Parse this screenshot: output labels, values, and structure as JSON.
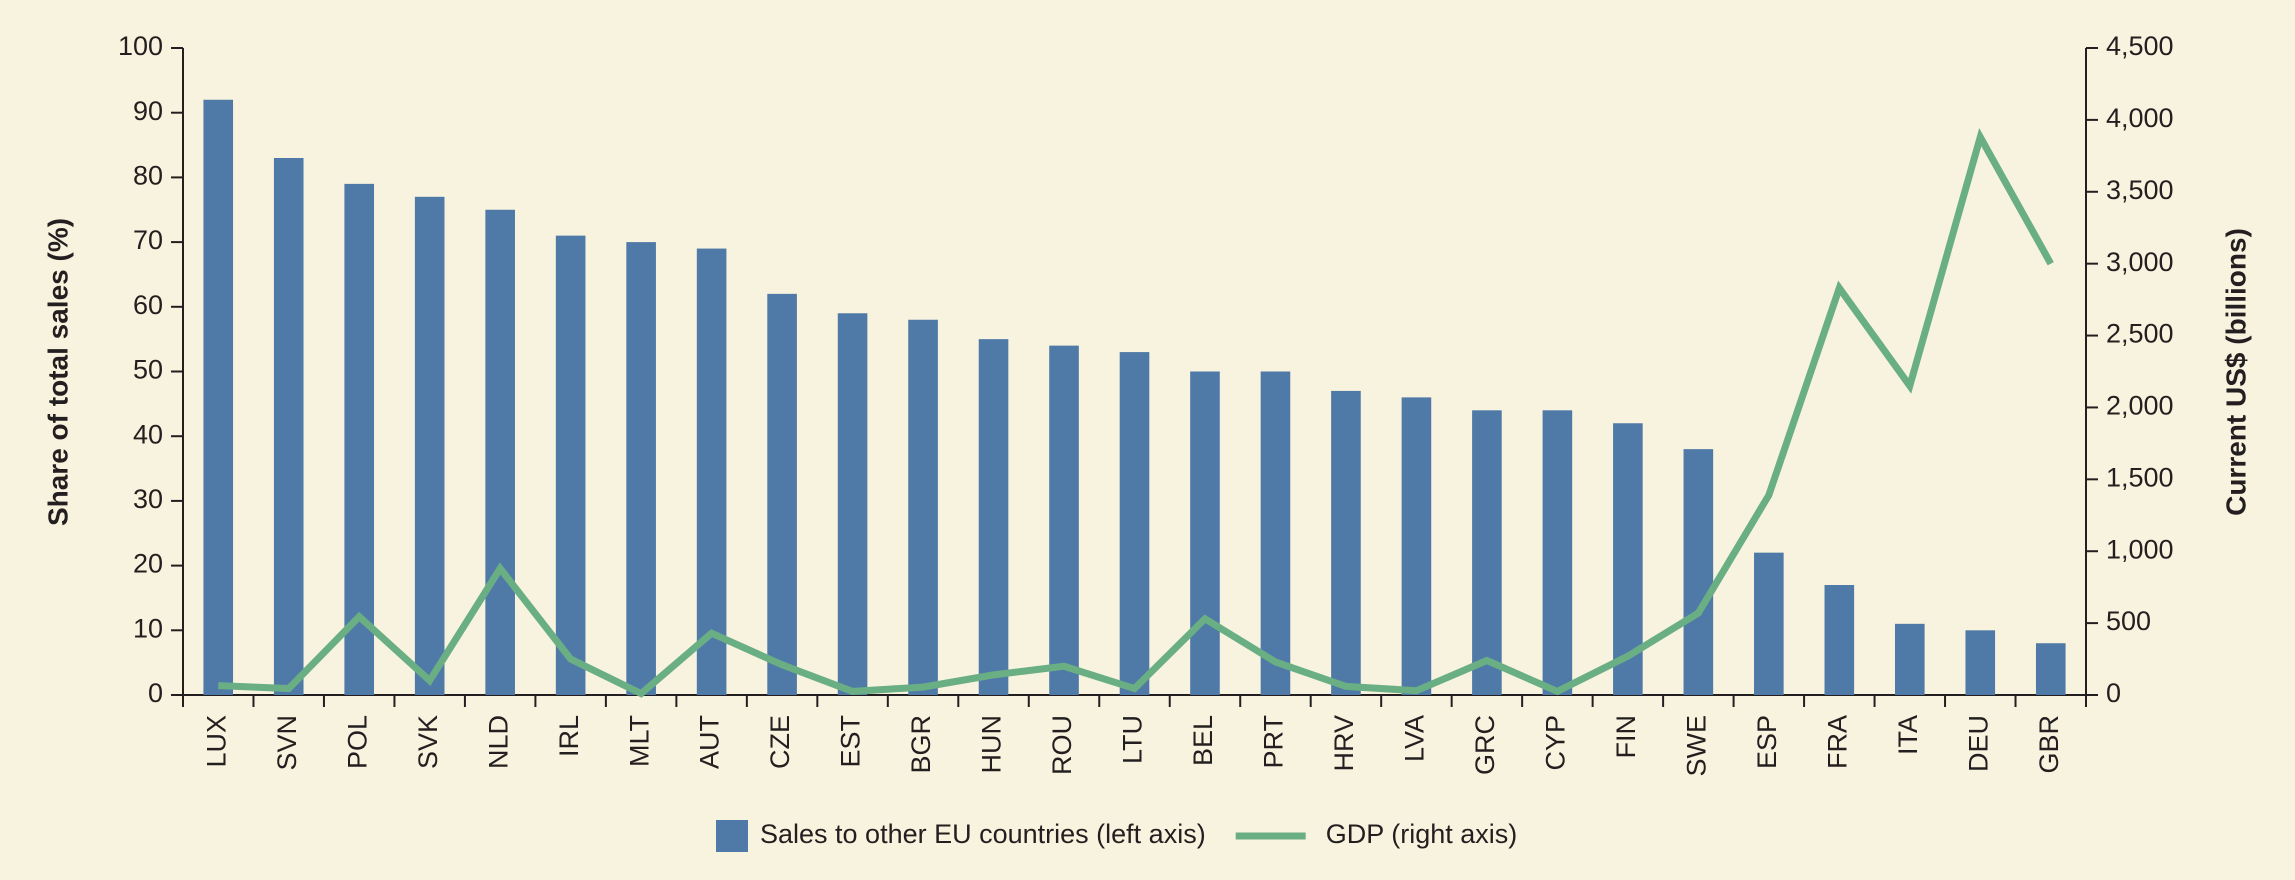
{
  "chart_data": {
    "type": "bar_line",
    "y_label": "Share of total sales (%)",
    "y2_label": "Current US$  (billions)",
    "categories": [
      "LUX",
      "SVN",
      "POL",
      "SVK",
      "NLD",
      "IRL",
      "MLT",
      "AUT",
      "CZE",
      "EST",
      "BGR",
      "HUN",
      "ROU",
      "LTU",
      "BEL",
      "PRT",
      "HRV",
      "LVA",
      "GRC",
      "CYP",
      "FIN",
      "SWE",
      "ESP",
      "FRA",
      "ITA",
      "DEU",
      "GBR"
    ],
    "series": [
      {
        "name": "Sales to other EU countries (left axis)",
        "type": "bar",
        "color": "#4f79a7",
        "values": [
          92,
          83,
          79,
          77,
          75,
          71,
          70,
          69,
          62,
          59,
          58,
          55,
          54,
          53,
          50,
          50,
          47,
          46,
          44,
          44,
          42,
          38,
          22,
          17,
          11,
          10,
          8
        ]
      },
      {
        "name": "GDP (right axis)",
        "type": "line",
        "axis": "y2",
        "color": "#6aae84",
        "values": [
          65,
          45,
          545,
          100,
          880,
          250,
          10,
          430,
          210,
          25,
          55,
          140,
          200,
          45,
          530,
          230,
          60,
          30,
          240,
          25,
          270,
          570,
          1390,
          2830,
          2150,
          3880,
          3000
        ]
      }
    ],
    "ylim": [
      0,
      100
    ],
    "yticks": [
      0,
      10,
      20,
      30,
      40,
      50,
      60,
      70,
      80,
      90,
      100
    ],
    "y2lim": [
      0,
      4500
    ],
    "y2ticks": [
      0,
      500,
      {
        "value": 1000,
        "label": "1,000"
      },
      {
        "value": 1500,
        "label": "1,500"
      },
      {
        "value": 2000,
        "label": "2,000"
      },
      {
        "value": 2500,
        "label": "2,500"
      },
      {
        "value": 3000,
        "label": "3,000"
      },
      {
        "value": 3500,
        "label": "3,500"
      },
      {
        "value": 4000,
        "label": "4,000"
      },
      {
        "value": 4500,
        "label": "4,500"
      }
    ],
    "legend": "bottom"
  }
}
